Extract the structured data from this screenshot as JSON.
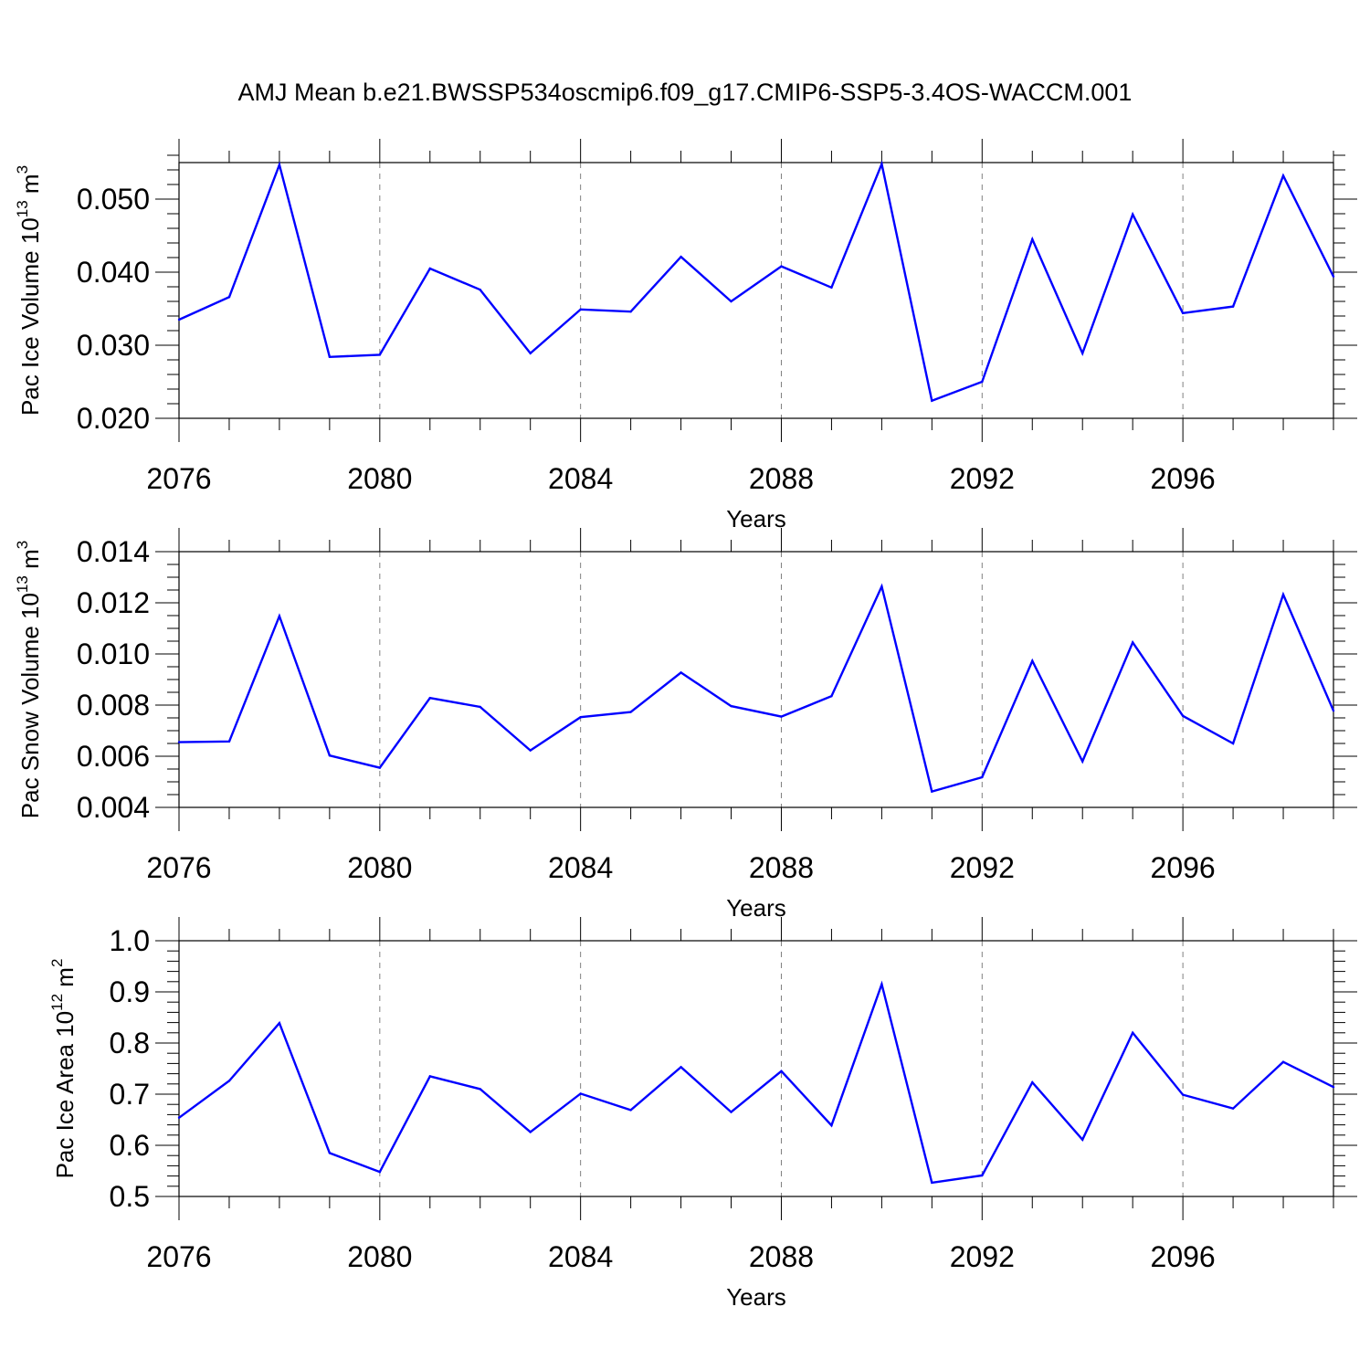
{
  "title": "AMJ Mean b.e21.BWSSP534oscmip6.f09_g17.CMIP6-SSP5-3.4OS-WACCM.001",
  "colors": {
    "line": "#0000ff",
    "axis": "#000000",
    "grid": "#808080"
  },
  "chart_data": [
    {
      "type": "line",
      "xlabel": "Years",
      "ylabel": {
        "text": "Pac Ice Volume 10",
        "sup": "13",
        "unit": " m",
        "unit_sup": "3"
      },
      "xlim": [
        2076,
        2099
      ],
      "ylim": [
        0.02,
        0.055
      ],
      "xticks": [
        "2076",
        "2080",
        "2084",
        "2088",
        "2092",
        "2096"
      ],
      "yticks": [
        "0.020",
        "0.030",
        "0.040",
        "0.050"
      ],
      "ytick_values": [
        0.02,
        0.03,
        0.04,
        0.05
      ],
      "yminor_step": 0.002,
      "grid": "vertical dashed at major x ticks",
      "x": [
        2076,
        2077,
        2078,
        2079,
        2080,
        2081,
        2082,
        2083,
        2084,
        2085,
        2086,
        2087,
        2088,
        2089,
        2090,
        2091,
        2092,
        2093,
        2094,
        2095,
        2096,
        2097,
        2098,
        2099
      ],
      "values": [
        0.0335,
        0.0366,
        0.0547,
        0.0284,
        0.0287,
        0.0405,
        0.0376,
        0.0289,
        0.0349,
        0.0346,
        0.0421,
        0.036,
        0.0408,
        0.0379,
        0.0548,
        0.0224,
        0.025,
        0.0445,
        0.0289,
        0.0479,
        0.0344,
        0.0353,
        0.0532,
        0.0394
      ]
    },
    {
      "type": "line",
      "xlabel": "Years",
      "ylabel": {
        "text": "Pac Snow Volume 10",
        "sup": "13",
        "unit": " m",
        "unit_sup": "3"
      },
      "xlim": [
        2076,
        2099
      ],
      "ylim": [
        0.004,
        0.014
      ],
      "xticks": [
        "2076",
        "2080",
        "2084",
        "2088",
        "2092",
        "2096"
      ],
      "yticks": [
        "0.004",
        "0.006",
        "0.008",
        "0.010",
        "0.012",
        "0.014"
      ],
      "ytick_values": [
        0.004,
        0.006,
        0.008,
        0.01,
        0.012,
        0.014
      ],
      "yminor_step": 0.0005,
      "grid": "vertical dashed at major x ticks",
      "x": [
        2076,
        2077,
        2078,
        2079,
        2080,
        2081,
        2082,
        2083,
        2084,
        2085,
        2086,
        2087,
        2088,
        2089,
        2090,
        2091,
        2092,
        2093,
        2094,
        2095,
        2096,
        2097,
        2098,
        2099
      ],
      "values": [
        0.00655,
        0.00658,
        0.01148,
        0.00603,
        0.00555,
        0.00828,
        0.00793,
        0.00623,
        0.00753,
        0.00773,
        0.00927,
        0.00796,
        0.00755,
        0.00835,
        0.01264,
        0.00462,
        0.00518,
        0.00973,
        0.0058,
        0.01045,
        0.00758,
        0.0065,
        0.01232,
        0.00778
      ]
    },
    {
      "type": "line",
      "xlabel": "Years",
      "ylabel": {
        "text": "Pac Ice Area 10",
        "sup": "12",
        "unit": " m",
        "unit_sup": "2"
      },
      "xlim": [
        2076,
        2099
      ],
      "ylim": [
        0.5,
        1.0
      ],
      "xticks": [
        "2076",
        "2080",
        "2084",
        "2088",
        "2092",
        "2096"
      ],
      "yticks": [
        "0.5",
        "0.6",
        "0.7",
        "0.8",
        "0.9",
        "1.0"
      ],
      "ytick_values": [
        0.5,
        0.6,
        0.7,
        0.8,
        0.9,
        1.0
      ],
      "yminor_step": 0.02,
      "grid": "vertical dashed at major x ticks",
      "x": [
        2076,
        2077,
        2078,
        2079,
        2080,
        2081,
        2082,
        2083,
        2084,
        2085,
        2086,
        2087,
        2088,
        2089,
        2090,
        2091,
        2092,
        2093,
        2094,
        2095,
        2096,
        2097,
        2098,
        2099
      ],
      "values": [
        0.654,
        0.726,
        0.839,
        0.585,
        0.548,
        0.735,
        0.71,
        0.626,
        0.701,
        0.669,
        0.753,
        0.665,
        0.745,
        0.639,
        0.915,
        0.527,
        0.541,
        0.723,
        0.611,
        0.82,
        0.699,
        0.672,
        0.763,
        0.714
      ]
    }
  ]
}
